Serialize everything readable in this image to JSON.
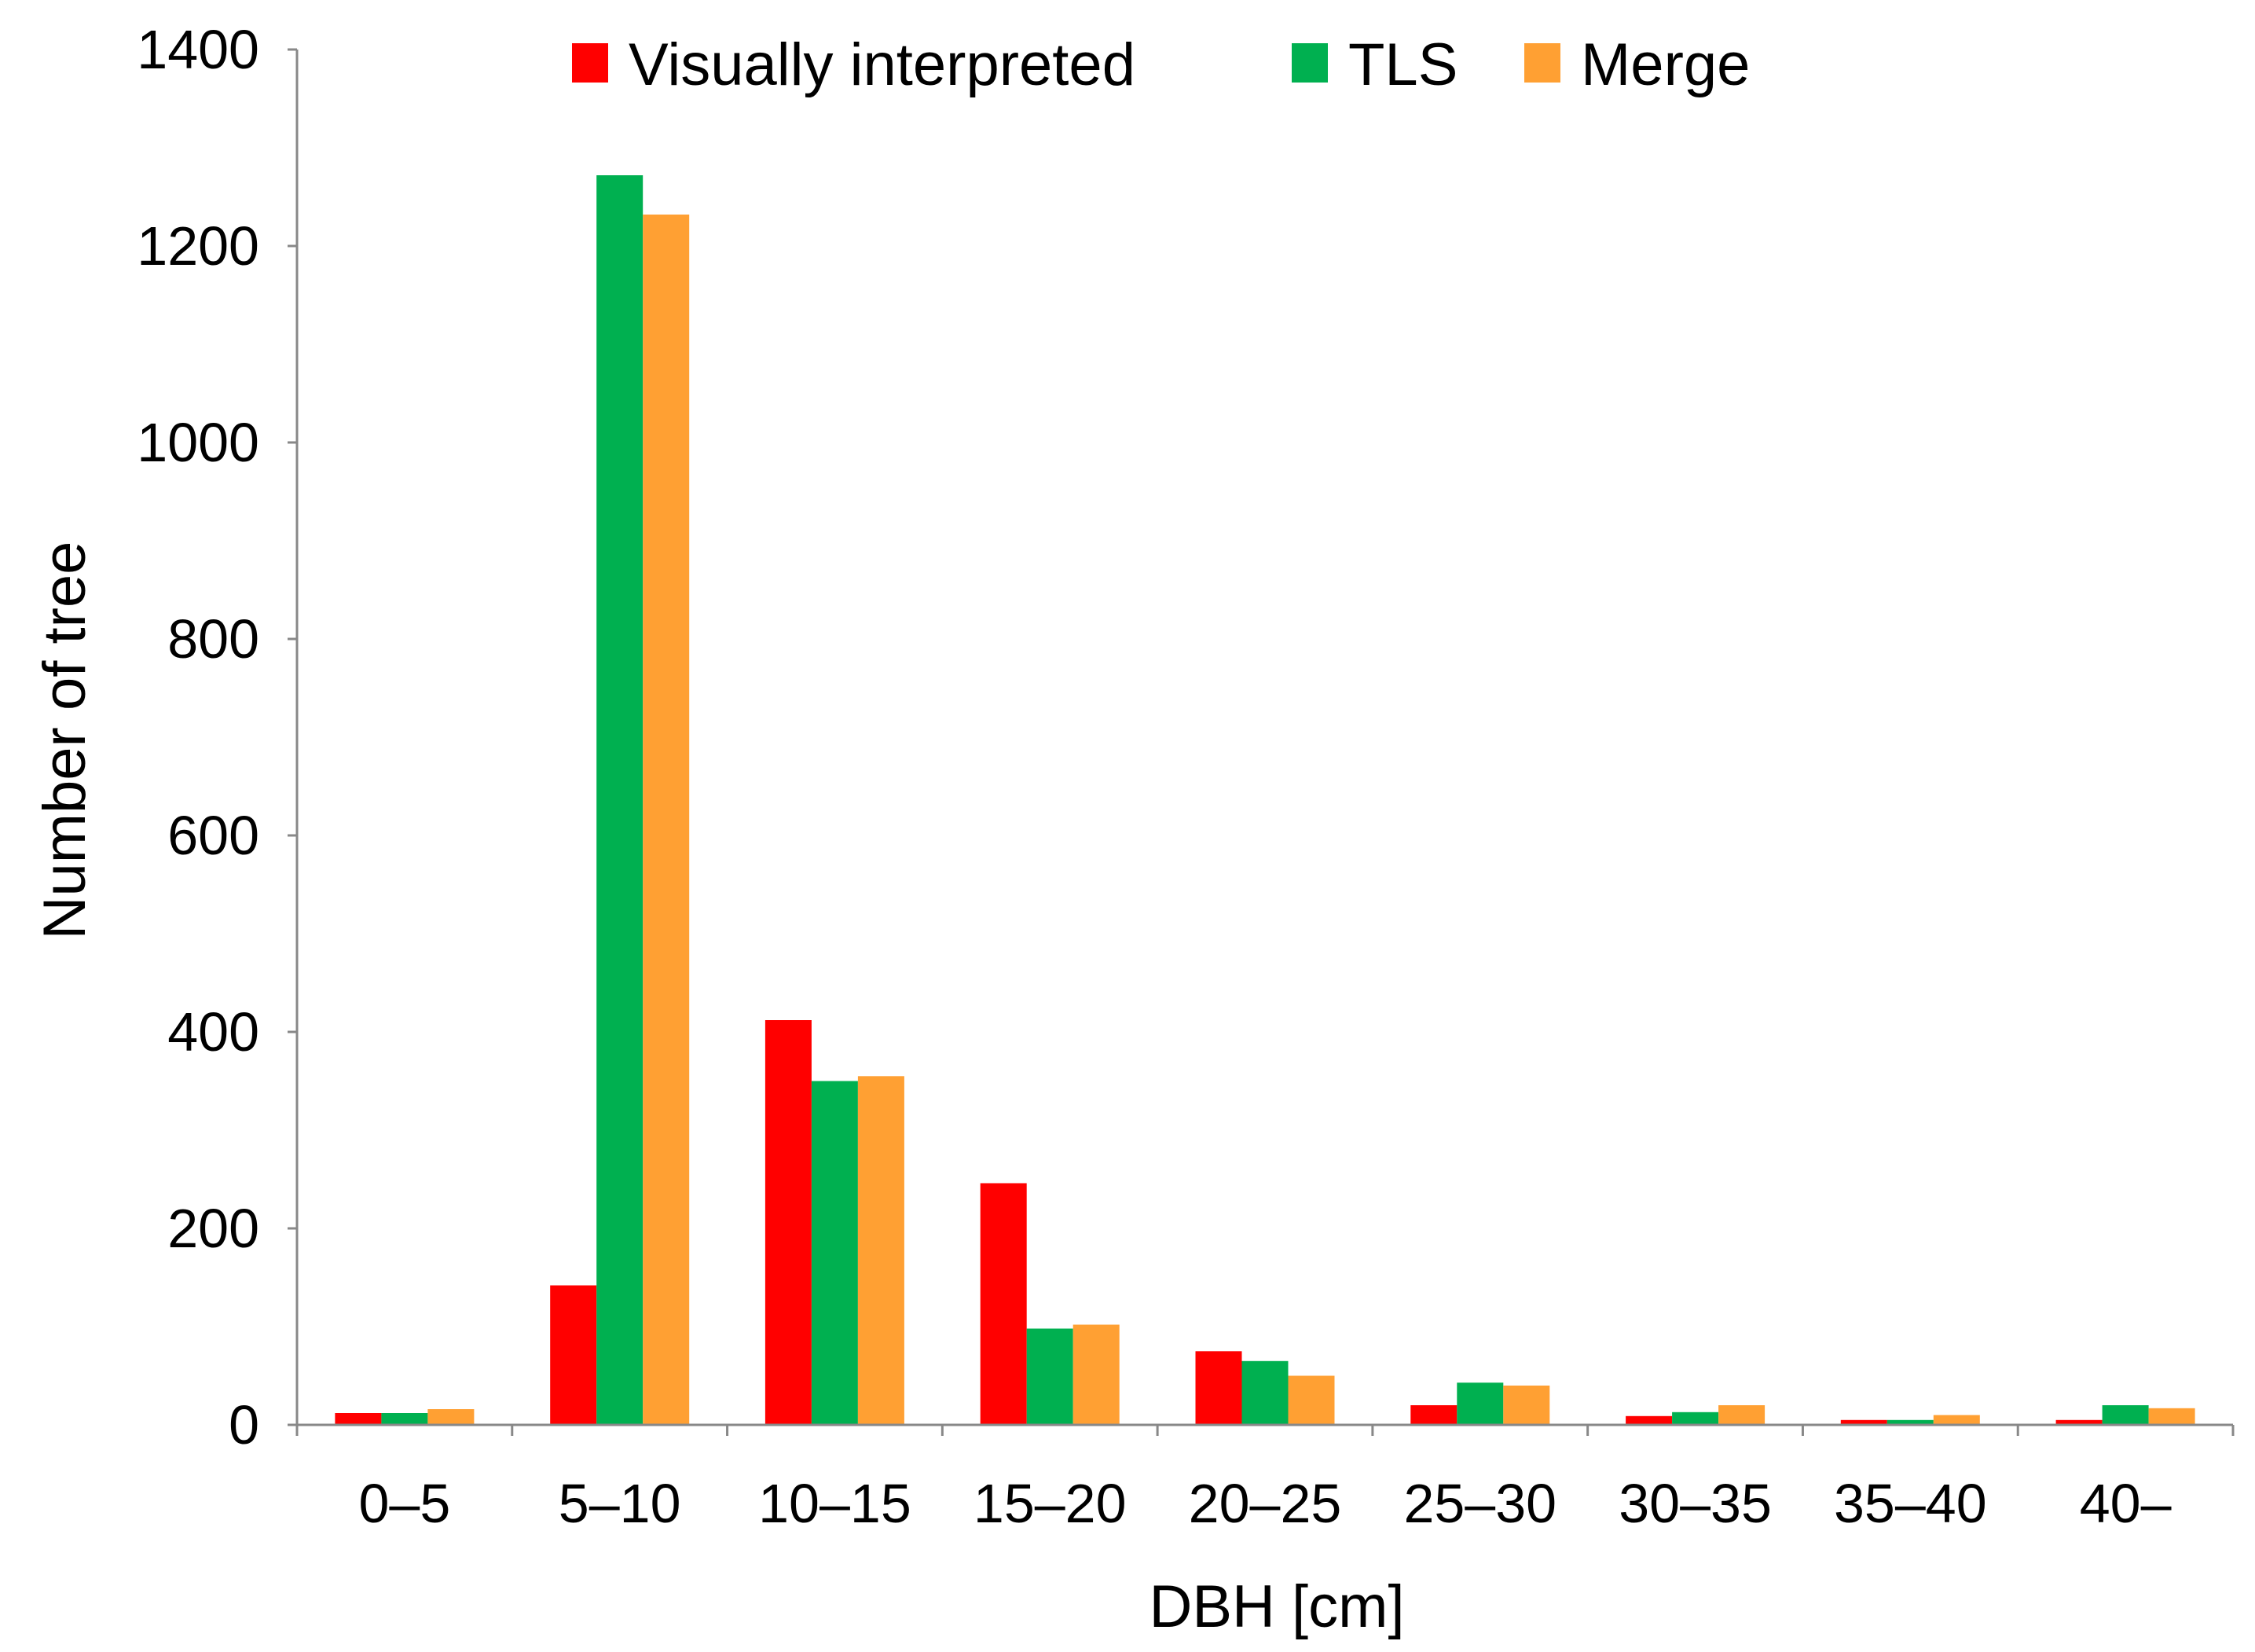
{
  "chart_data": {
    "type": "bar",
    "title": "",
    "xlabel": "DBH [cm]",
    "ylabel": "Number of tree",
    "ylim": [
      0,
      1400
    ],
    "yticks": [
      0,
      200,
      400,
      600,
      800,
      1000,
      1200,
      1400
    ],
    "grid": false,
    "legend_position": "top-center",
    "categories": [
      "0–5",
      "5–10",
      "10–15",
      "15–20",
      "20–25",
      "25–30",
      "30–35",
      "35–40",
      "40–"
    ],
    "series": [
      {
        "name": "Visually interpreted",
        "color": "#ff0000",
        "values": [
          12,
          142,
          412,
          246,
          75,
          20,
          9,
          5,
          5
        ]
      },
      {
        "name": "TLS",
        "color": "#00b050",
        "values": [
          12,
          1272,
          350,
          98,
          65,
          43,
          13,
          5,
          20
        ]
      },
      {
        "name": "Merge",
        "color": "#ffa033",
        "values": [
          16,
          1232,
          355,
          102,
          50,
          40,
          20,
          10,
          17
        ]
      }
    ]
  }
}
